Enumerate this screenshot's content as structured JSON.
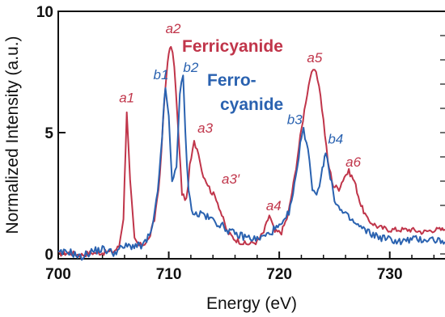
{
  "chart_data": {
    "type": "line",
    "xlabel": "Energy (eV)",
    "ylabel": "Normalized Intensity (a.u.)",
    "xlim": [
      700,
      735
    ],
    "ylim": [
      -0.2,
      10
    ],
    "x_ticks": [
      700,
      710,
      720,
      730
    ],
    "y_ticks": [
      0,
      5,
      10
    ],
    "grid": false,
    "colors": {
      "ferri": "#c0354a",
      "ferro": "#2a62b0",
      "axis": "#111111"
    },
    "series": [
      {
        "key": "ferri",
        "x": [
          700,
          701,
          702,
          703,
          704,
          705,
          705.5,
          705.9,
          706.2,
          706.5,
          706.9,
          707.3,
          707.7,
          708.2,
          708.7,
          709.2,
          709.6,
          709.9,
          710.2,
          710.5,
          710.8,
          711.2,
          711.6,
          711.9,
          712.3,
          712.7,
          713.0,
          713.4,
          713.8,
          714.3,
          714.8,
          715.3,
          716,
          717,
          718,
          718.6,
          719.1,
          719.6,
          720.2,
          720.8,
          721.4,
          721.9,
          722.4,
          722.8,
          723.2,
          723.6,
          724.0,
          724.4,
          724.9,
          725.4,
          725.9,
          726.3,
          726.8,
          727.4,
          728,
          729,
          730,
          731,
          732,
          733,
          734,
          735
        ],
        "y": [
          0,
          0.05,
          -0.05,
          0.05,
          0.05,
          0.1,
          0.3,
          1.5,
          5.9,
          3.0,
          0.6,
          0.35,
          0.4,
          0.6,
          1.4,
          3.2,
          6.3,
          8.0,
          8.6,
          7.8,
          5.5,
          2.5,
          2.2,
          3.6,
          4.6,
          4.2,
          3.4,
          3.0,
          2.6,
          2.3,
          1.6,
          0.9,
          0.6,
          0.4,
          0.5,
          0.9,
          1.6,
          0.9,
          0.9,
          1.6,
          3.2,
          4.8,
          6.3,
          7.3,
          7.6,
          7.0,
          5.5,
          3.8,
          2.8,
          2.7,
          3.2,
          3.4,
          3.0,
          2.0,
          1.4,
          1.1,
          1.0,
          1.0,
          1.0,
          0.9,
          1.0,
          1.0
        ]
      },
      {
        "key": "ferro",
        "x": [
          700,
          701,
          702,
          703,
          704,
          705,
          706,
          707,
          707.5,
          708,
          708.5,
          709,
          709.4,
          709.7,
          710.0,
          710.3,
          710.7,
          711.0,
          711.3,
          711.5,
          711.8,
          712.2,
          712.6,
          713,
          713.5,
          714,
          715,
          716,
          717,
          718,
          719,
          719.5,
          720,
          720.5,
          721,
          721.5,
          721.9,
          722.2,
          722.6,
          723.0,
          723.5,
          723.9,
          724.2,
          724.5,
          725,
          725.5,
          726,
          727,
          728,
          729,
          730,
          731,
          732,
          733,
          734,
          735
        ],
        "y": [
          0,
          0.1,
          -0.15,
          0.1,
          0.2,
          0.05,
          0.3,
          0.35,
          0.3,
          0.55,
          1.0,
          2.5,
          4.9,
          6.9,
          5.6,
          2.9,
          3.7,
          6.6,
          7.3,
          5.0,
          2.5,
          1.7,
          1.6,
          1.7,
          1.5,
          1.4,
          1.1,
          0.8,
          0.7,
          0.6,
          0.8,
          1.0,
          1.1,
          1.3,
          1.9,
          3.1,
          4.6,
          5.1,
          4.4,
          2.7,
          2.5,
          3.5,
          4.3,
          3.4,
          2.3,
          1.8,
          1.6,
          1.2,
          0.9,
          0.7,
          0.6,
          0.5,
          0.6,
          0.6,
          0.6,
          0.5
        ]
      }
    ],
    "legend": [
      {
        "key": "ferri",
        "lines": [
          "Ferricyanide"
        ]
      },
      {
        "key": "ferro",
        "lines": [
          "Ferro-",
          "cyanide"
        ]
      }
    ],
    "annotations": [
      {
        "text": "a1",
        "series": "ferri",
        "x": 706.2,
        "y": 6.25
      },
      {
        "text": "a2",
        "series": "ferri",
        "x": 710.4,
        "y": 9.1
      },
      {
        "text": "a3",
        "series": "ferri",
        "x": 713.3,
        "y": 5.0
      },
      {
        "text": "a3′",
        "series": "ferri",
        "x": 715.6,
        "y": 2.9
      },
      {
        "text": "a4",
        "series": "ferri",
        "x": 719.5,
        "y": 1.8
      },
      {
        "text": "a5",
        "series": "ferri",
        "x": 723.2,
        "y": 7.9
      },
      {
        "text": "a6",
        "series": "ferri",
        "x": 726.7,
        "y": 3.6
      },
      {
        "text": "b1",
        "series": "ferro",
        "x": 709.3,
        "y": 7.2
      },
      {
        "text": "b2",
        "series": "ferro",
        "x": 712.0,
        "y": 7.5
      },
      {
        "text": "b3",
        "series": "ferro",
        "x": 721.4,
        "y": 5.35
      },
      {
        "text": "b4",
        "series": "ferro",
        "x": 725.1,
        "y": 4.55
      }
    ]
  }
}
